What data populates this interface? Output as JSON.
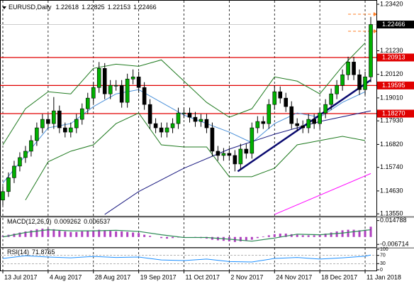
{
  "chart_data": [
    {
      "type": "candlestick",
      "title": "EURUSD,Daily",
      "header_values": [
        1.22618,
        1.22825,
        1.22153,
        1.22466
      ],
      "x": [
        0,
        2,
        4,
        6,
        8,
        10,
        12,
        14,
        16,
        18,
        20,
        22,
        24,
        26,
        28,
        30,
        32,
        34,
        36,
        38,
        40,
        42,
        44,
        46,
        48,
        50,
        52,
        54,
        56,
        58,
        60,
        62,
        64,
        66,
        68,
        70,
        72,
        74,
        76,
        78,
        80,
        82,
        84,
        86,
        88,
        90,
        92,
        94,
        96,
        98,
        100,
        102,
        104,
        106,
        108,
        110,
        112,
        114,
        116,
        118,
        120,
        122,
        124,
        126,
        128,
        130
      ],
      "open": [
        1.142,
        1.146,
        1.1525,
        1.158,
        1.162,
        1.165,
        1.17,
        1.176,
        1.18,
        1.178,
        1.184,
        1.176,
        1.174,
        1.176,
        1.18,
        1.185,
        1.19,
        1.195,
        1.204,
        1.192,
        1.196,
        1.196,
        1.188,
        1.199,
        1.2,
        1.195,
        1.187,
        1.178,
        1.176,
        1.174,
        1.176,
        1.178,
        1.183,
        1.183,
        1.181,
        1.179,
        1.18,
        1.176,
        1.165,
        1.163,
        1.164,
        1.163,
        1.159,
        1.166,
        1.164,
        1.176,
        1.179,
        1.178,
        1.187,
        1.193,
        1.19,
        1.186,
        1.178,
        1.177,
        1.176,
        1.18,
        1.178,
        1.183,
        1.187,
        1.192,
        1.196,
        1.201,
        1.207,
        1.201,
        1.194,
        1.2
      ],
      "high": [
        1.1485,
        1.155,
        1.1605,
        1.1645,
        1.1675,
        1.1725,
        1.1785,
        1.1825,
        1.1825,
        1.1905,
        1.1865,
        1.1785,
        1.1785,
        1.1825,
        1.1875,
        1.1925,
        1.1975,
        1.207,
        1.2065,
        1.1985,
        1.1985,
        1.1985,
        1.2015,
        1.2035,
        1.2025,
        1.1975,
        1.1895,
        1.1805,
        1.1785,
        1.1785,
        1.1805,
        1.1855,
        1.1855,
        1.1855,
        1.1835,
        1.1825,
        1.1825,
        1.1785,
        1.1675,
        1.1665,
        1.1665,
        1.1655,
        1.1685,
        1.1685,
        1.1785,
        1.1815,
        1.1815,
        1.1895,
        1.196,
        1.1955,
        1.1925,
        1.1885,
        1.1805,
        1.1795,
        1.1825,
        1.1825,
        1.1855,
        1.1895,
        1.1945,
        1.1985,
        1.2035,
        1.2095,
        1.2095,
        1.2035,
        1.2025,
        1.22825
      ],
      "low": [
        1.1395,
        1.1435,
        1.15,
        1.1555,
        1.1595,
        1.1625,
        1.1675,
        1.1735,
        1.1755,
        1.1755,
        1.1735,
        1.1715,
        1.1715,
        1.1735,
        1.1775,
        1.1825,
        1.1875,
        1.1925,
        1.1895,
        1.1895,
        1.1935,
        1.1855,
        1.1855,
        1.1965,
        1.1925,
        1.1845,
        1.1755,
        1.1735,
        1.1715,
        1.1715,
        1.1735,
        1.1755,
        1.1805,
        1.1785,
        1.1765,
        1.1765,
        1.1735,
        1.1625,
        1.1605,
        1.1605,
        1.1605,
        1.1555,
        1.1565,
        1.1615,
        1.1615,
        1.1735,
        1.1755,
        1.1755,
        1.1845,
        1.1875,
        1.1835,
        1.1755,
        1.1745,
        1.1735,
        1.1735,
        1.1755,
        1.1755,
        1.1805,
        1.1845,
        1.1895,
        1.1935,
        1.1985,
        1.1985,
        1.1915,
        1.1915,
        1.1975
      ],
      "close": [
        1.146,
        1.1525,
        1.158,
        1.162,
        1.165,
        1.17,
        1.176,
        1.18,
        1.178,
        1.184,
        1.176,
        1.174,
        1.176,
        1.18,
        1.185,
        1.19,
        1.195,
        1.204,
        1.192,
        1.196,
        1.196,
        1.188,
        1.199,
        1.2,
        1.195,
        1.187,
        1.178,
        1.176,
        1.174,
        1.176,
        1.178,
        1.183,
        1.183,
        1.181,
        1.179,
        1.18,
        1.176,
        1.165,
        1.163,
        1.164,
        1.163,
        1.159,
        1.166,
        1.164,
        1.176,
        1.179,
        1.178,
        1.187,
        1.193,
        1.19,
        1.186,
        1.178,
        1.177,
        1.176,
        1.18,
        1.178,
        1.183,
        1.187,
        1.192,
        1.196,
        1.201,
        1.207,
        1.201,
        1.194,
        1.2,
        1.22466
      ],
      "up_color": "#00b000",
      "down_color": "#000000",
      "xlim": [
        -1,
        132
      ],
      "xticks": [
        {
          "value": 0,
          "label": "13 Jul 2017"
        },
        {
          "value": 16,
          "label": "4 Aug 2017"
        },
        {
          "value": 32,
          "label": "28 Aug 2017"
        },
        {
          "value": 48,
          "label": "19 Sep 2017"
        },
        {
          "value": 64,
          "label": "11 Oct 2017"
        },
        {
          "value": 80,
          "label": "2 Nov 2017"
        },
        {
          "value": 96,
          "label": "24 Nov 2017"
        },
        {
          "value": 112,
          "label": "18 Dec 2017"
        },
        {
          "value": 128,
          "label": "11 Jan 2018"
        }
      ],
      "ylim": [
        1.1349,
        1.2352
      ],
      "yticks": [
        {
          "value": 1.2342,
          "label": "1.23420"
        },
        {
          "value": 1.2123,
          "label": "1.21230"
        },
        {
          "value": 1.2012,
          "label": "1.20120"
        },
        {
          "value": 1.1901,
          "label": "1.19010"
        },
        {
          "value": 1.1793,
          "label": "1.17930"
        },
        {
          "value": 1.1682,
          "label": "1.16820"
        },
        {
          "value": 1.1574,
          "label": "1.15740"
        },
        {
          "value": 1.1463,
          "label": "1.14630"
        },
        {
          "value": 1.1355,
          "label": "1.13550"
        }
      ],
      "levels": [
        {
          "value": 1.20913,
          "label": "1.20913",
          "color": "#e00000"
        },
        {
          "value": 1.19595,
          "label": "1.19595",
          "color": "#e00000"
        },
        {
          "value": 1.1827,
          "label": "1.18270",
          "color": "#e00000"
        }
      ],
      "last_price": {
        "value": 1.22466,
        "label": "1.22466",
        "color": "#000000"
      },
      "overlays": [
        {
          "color": "#1f7a1f",
          "width": 1,
          "x": [
            0,
            8,
            16,
            24,
            32,
            40,
            48,
            56,
            64,
            72,
            80,
            88,
            96,
            104,
            112,
            120,
            128
          ],
          "values": [
            1.168,
            1.185,
            1.193,
            1.192,
            1.204,
            1.206,
            1.205,
            1.208,
            1.198,
            1.188,
            1.181,
            1.185,
            1.2,
            1.198,
            1.192,
            1.205,
            1.216
          ]
        },
        {
          "color": "#1f7a1f",
          "width": 1,
          "x": [
            8,
            16,
            24,
            32,
            40,
            48,
            56,
            64,
            72,
            80,
            88,
            96,
            104,
            112,
            120,
            128
          ],
          "values": [
            1.142,
            1.16,
            1.165,
            1.168,
            1.178,
            1.183,
            1.168,
            1.167,
            1.167,
            1.153,
            1.153,
            1.157,
            1.168,
            1.17,
            1.172,
            1.17
          ]
        },
        {
          "color": "#4a90d9",
          "width": 1,
          "x": [
            0,
            8,
            16,
            24,
            32,
            40,
            48,
            56,
            64,
            72,
            80,
            88,
            96,
            104,
            112,
            120,
            128
          ],
          "values": [
            1.15,
            1.163,
            1.176,
            1.178,
            1.186,
            1.192,
            1.194,
            1.188,
            1.182,
            1.178,
            1.174,
            1.169,
            1.178,
            1.183,
            1.181,
            1.188,
            1.193
          ]
        },
        {
          "color": "#1a1a80",
          "width": 1,
          "x": [
            36,
            48,
            64,
            80,
            96,
            112,
            130
          ],
          "values": [
            1.1352,
            1.146,
            1.157,
            1.166,
            1.173,
            1.179,
            1.184
          ]
        },
        {
          "color": "#ff00ff",
          "width": 1,
          "x": [
            96,
            130
          ],
          "values": [
            1.1352,
            1.1545
          ]
        },
        {
          "color": "#0a0a70",
          "width": 2.5,
          "x": [
            83,
            130
          ],
          "values": [
            1.1555,
            1.1985
          ]
        },
        {
          "color": "#ff7f27",
          "width": 1,
          "dash": true,
          "x": [
            122,
            131
          ],
          "values": [
            1.2295,
            1.2295
          ]
        },
        {
          "color": "#ff7f27",
          "width": 1,
          "dash": true,
          "x": [
            122,
            131
          ],
          "values": [
            1.2215,
            1.2215
          ]
        }
      ]
    },
    {
      "type": "macd",
      "title": "MACD(12,26,9)",
      "header_values": [
        0.009262,
        0.006537
      ],
      "x": [
        0,
        2,
        4,
        6,
        8,
        10,
        12,
        14,
        16,
        18,
        20,
        22,
        24,
        26,
        28,
        30,
        32,
        34,
        36,
        38,
        40,
        42,
        44,
        46,
        48,
        50,
        52,
        54,
        56,
        58,
        60,
        62,
        64,
        66,
        68,
        70,
        72,
        74,
        76,
        78,
        80,
        82,
        84,
        86,
        88,
        90,
        92,
        94,
        96,
        98,
        100,
        102,
        104,
        106,
        108,
        110,
        112,
        114,
        116,
        118,
        120,
        122,
        124,
        126,
        128,
        130
      ],
      "values": [
        0.001,
        0.002,
        0.003,
        0.004,
        0.005,
        0.006,
        0.007,
        0.0075,
        0.0075,
        0.007,
        0.006,
        0.005,
        0.0045,
        0.0045,
        0.005,
        0.0055,
        0.006,
        0.0065,
        0.006,
        0.0055,
        0.005,
        0.005,
        0.0045,
        0.004,
        0.0035,
        0.002,
        0.001,
        0,
        -0.001,
        -0.0015,
        -0.001,
        -0.0005,
        0,
        0,
        -0.0005,
        -0.001,
        -0.0015,
        -0.0025,
        -0.003,
        -0.0035,
        -0.004,
        -0.0045,
        -0.004,
        -0.0035,
        -0.0025,
        -0.001,
        0.0005,
        0.0015,
        0.0025,
        0.003,
        0.003,
        0.0025,
        0.002,
        0.0015,
        0.0015,
        0.0015,
        0.002,
        0.003,
        0.004,
        0.005,
        0.006,
        0.0065,
        0.0065,
        0.006,
        0.0065,
        0.009262
      ],
      "color": "#b040c0",
      "signal": {
        "color": "#2e8b57",
        "x": [
          0,
          8,
          16,
          24,
          32,
          40,
          48,
          56,
          64,
          72,
          80,
          88,
          96,
          104,
          112,
          120,
          128,
          130
        ],
        "values": [
          0.0,
          0.004,
          0.0065,
          0.0055,
          0.0055,
          0.006,
          0.005,
          0.002,
          -0.0005,
          -0.0005,
          -0.002,
          -0.0038,
          -0.001,
          0.0025,
          0.002,
          0.0035,
          0.006,
          0.006537
        ]
      },
      "xlim": [
        -1,
        132
      ],
      "ylim": [
        -0.0085,
        0.0165
      ],
      "yticks": [
        0.014788,
        -0.006714
      ]
    },
    {
      "type": "line",
      "title": "RSI(14)",
      "header_values": [
        71.8765
      ],
      "x": [
        0,
        8,
        16,
        24,
        32,
        40,
        48,
        56,
        64,
        72,
        80,
        88,
        96,
        104,
        112,
        120,
        128,
        130
      ],
      "values": [
        55,
        68,
        62,
        58,
        65,
        60,
        62,
        48,
        45,
        52,
        40,
        38,
        55,
        60,
        52,
        58,
        66,
        71.8765
      ],
      "color": "#1e90ff",
      "xlim": [
        -1,
        132
      ],
      "ylim": [
        0,
        100
      ],
      "yticks": [
        100,
        70,
        30,
        0
      ],
      "levels": [
        70,
        30
      ]
    }
  ]
}
